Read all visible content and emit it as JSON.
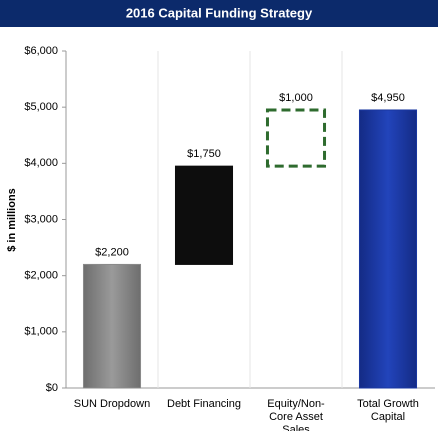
{
  "chart_data": {
    "type": "waterfall",
    "title": "2016 Capital Funding Strategy",
    "y_label": "$ in millions",
    "categories": [
      "SUN Dropdown",
      "Debt Financing",
      "Equity/Non-Core Asset Sales",
      "Total Growth Capital"
    ],
    "values": [
      2200,
      1750,
      1000,
      4950
    ],
    "value_labels": [
      "$2,200",
      "$1,750",
      "$1,000",
      "$4,950"
    ],
    "measure": [
      "relative",
      "relative",
      "relative",
      "total"
    ],
    "colors": [
      "#8a8a8a",
      "#0d0d0d",
      "#2e6b2e",
      "#1a37a0"
    ],
    "dashed": [
      false,
      false,
      true,
      false
    ],
    "ylim": [
      0,
      6000
    ],
    "yticks": [
      {
        "value": 0,
        "label": "$0"
      },
      {
        "value": 1000,
        "label": "$1,000"
      },
      {
        "value": 2000,
        "label": "$2,000"
      },
      {
        "value": 3000,
        "label": "$3,000"
      },
      {
        "value": 4000,
        "label": "$4,000"
      },
      {
        "value": 5000,
        "label": "$5,000"
      },
      {
        "value": 6000,
        "label": "$6,000"
      }
    ]
  }
}
